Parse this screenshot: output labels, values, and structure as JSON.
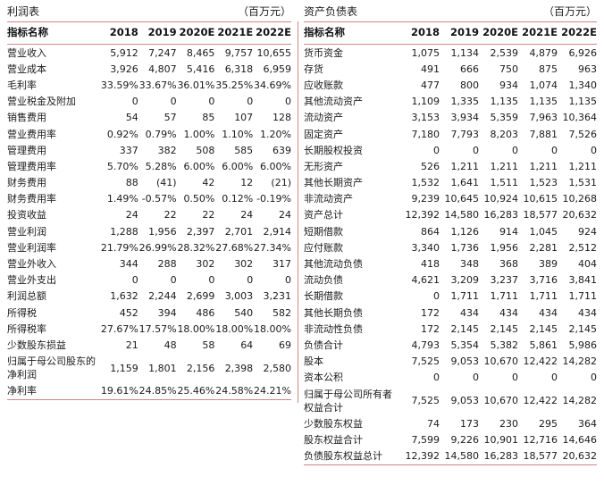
{
  "accent_line_color": "#d08683",
  "columns": [
    "指标名称",
    "2018",
    "2019",
    "2020E",
    "2021E",
    "2022E"
  ],
  "income_statement": {
    "title": "利润表",
    "unit": "（百万元）",
    "rows": [
      {
        "label": "营业收入",
        "values": [
          "5,912",
          "7,247",
          "8,465",
          "9,757",
          "10,655"
        ]
      },
      {
        "label": "营业成本",
        "values": [
          "3,926",
          "4,807",
          "5,416",
          "6,318",
          "6,959"
        ]
      },
      {
        "label": "毛利率",
        "values": [
          "33.59%",
          "33.67%",
          "36.01%",
          "35.25%",
          "34.69%"
        ]
      },
      {
        "label": "营业税金及附加",
        "values": [
          "0",
          "0",
          "0",
          "0",
          "0"
        ]
      },
      {
        "label": "销售费用",
        "values": [
          "54",
          "57",
          "85",
          "107",
          "128"
        ]
      },
      {
        "label": "营业费用率",
        "values": [
          "0.92%",
          "0.79%",
          "1.00%",
          "1.10%",
          "1.20%"
        ]
      },
      {
        "label": "管理费用",
        "values": [
          "337",
          "382",
          "508",
          "585",
          "639"
        ]
      },
      {
        "label": "管理费用率",
        "values": [
          "5.70%",
          "5.28%",
          "6.00%",
          "6.00%",
          "6.00%"
        ]
      },
      {
        "label": "财务费用",
        "values": [
          "88",
          "(41)",
          "42",
          "12",
          "(21)"
        ]
      },
      {
        "label": "财务费用率",
        "values": [
          "1.49%",
          "-0.57%",
          "0.50%",
          "0.12%",
          "-0.19%"
        ]
      },
      {
        "label": "投资收益",
        "values": [
          "24",
          "22",
          "22",
          "24",
          "24"
        ]
      },
      {
        "label": "营业利润",
        "values": [
          "1,288",
          "1,956",
          "2,397",
          "2,701",
          "2,914"
        ]
      },
      {
        "label": "营业利润率",
        "values": [
          "21.79%",
          "26.99%",
          "28.32%",
          "27.68%",
          "27.34%"
        ]
      },
      {
        "label": "营业外收入",
        "values": [
          "344",
          "288",
          "302",
          "302",
          "317"
        ]
      },
      {
        "label": "营业外支出",
        "values": [
          "0",
          "0",
          "0",
          "0",
          "0"
        ]
      },
      {
        "label": "利润总额",
        "values": [
          "1,632",
          "2,244",
          "2,699",
          "3,003",
          "3,231"
        ]
      },
      {
        "label": "所得税",
        "values": [
          "452",
          "394",
          "486",
          "540",
          "582"
        ]
      },
      {
        "label": "所得税率",
        "values": [
          "27.67%",
          "17.57%",
          "18.00%",
          "18.00%",
          "18.00%"
        ]
      },
      {
        "label": "少数股东损益",
        "values": [
          "21",
          "48",
          "58",
          "64",
          "69"
        ]
      },
      {
        "label": "归属于母公司股东的净利润",
        "values": [
          "1,159",
          "1,801",
          "2,156",
          "2,398",
          "2,580"
        ]
      },
      {
        "label": "净利率",
        "values": [
          "19.61%",
          "24.85%",
          "25.46%",
          "24.58%",
          "24.21%"
        ]
      }
    ]
  },
  "balance_sheet": {
    "title": "资产负债表",
    "unit": "（百万元）",
    "rows": [
      {
        "label": "货币资金",
        "values": [
          "1,075",
          "1,134",
          "2,539",
          "4,879",
          "6,926"
        ]
      },
      {
        "label": "存货",
        "values": [
          "491",
          "666",
          "750",
          "875",
          "963"
        ]
      },
      {
        "label": "应收账款",
        "values": [
          "477",
          "800",
          "934",
          "1,074",
          "1,340"
        ]
      },
      {
        "label": "其他流动资产",
        "values": [
          "1,109",
          "1,335",
          "1,135",
          "1,135",
          "1,135"
        ]
      },
      {
        "label": "流动资产",
        "values": [
          "3,153",
          "3,934",
          "5,359",
          "7,963",
          "10,364"
        ]
      },
      {
        "label": "固定资产",
        "values": [
          "7,180",
          "7,793",
          "8,203",
          "7,881",
          "7,526"
        ]
      },
      {
        "label": "长期股权投资",
        "values": [
          "0",
          "0",
          "0",
          "0",
          "0"
        ]
      },
      {
        "label": "无形资产",
        "values": [
          "526",
          "1,211",
          "1,211",
          "1,211",
          "1,211"
        ]
      },
      {
        "label": "其他长期资产",
        "values": [
          "1,532",
          "1,641",
          "1,511",
          "1,523",
          "1,531"
        ]
      },
      {
        "label": "非流动资产",
        "values": [
          "9,239",
          "10,645",
          "10,924",
          "10,615",
          "10,268"
        ]
      },
      {
        "label": "资产总计",
        "values": [
          "12,392",
          "14,580",
          "16,283",
          "18,577",
          "20,632"
        ]
      },
      {
        "label": "短期借款",
        "values": [
          "864",
          "1,126",
          "914",
          "1,045",
          "924"
        ]
      },
      {
        "label": "应付账款",
        "values": [
          "3,340",
          "1,736",
          "1,956",
          "2,281",
          "2,512"
        ]
      },
      {
        "label": "其他流动负债",
        "values": [
          "418",
          "348",
          "368",
          "389",
          "404"
        ]
      },
      {
        "label": "流动负债",
        "values": [
          "4,621",
          "3,209",
          "3,237",
          "3,716",
          "3,841"
        ]
      },
      {
        "label": "长期借款",
        "values": [
          "0",
          "1,711",
          "1,711",
          "1,711",
          "1,711"
        ]
      },
      {
        "label": "其他长期负债",
        "values": [
          "172",
          "434",
          "434",
          "434",
          "434"
        ]
      },
      {
        "label": "非流动性负债",
        "values": [
          "172",
          "2,145",
          "2,145",
          "2,145",
          "2,145"
        ]
      },
      {
        "label": "负债合计",
        "values": [
          "4,793",
          "5,354",
          "5,382",
          "5,861",
          "5,986"
        ]
      },
      {
        "label": "股本",
        "values": [
          "7,525",
          "9,053",
          "10,670",
          "12,422",
          "14,282"
        ]
      },
      {
        "label": "资本公积",
        "values": [
          "0",
          "0",
          "0",
          "0",
          "0"
        ]
      },
      {
        "label": "归属于母公司所有者权益合计",
        "values": [
          "7,525",
          "9,053",
          "10,670",
          "12,422",
          "14,282"
        ]
      },
      {
        "label": "少数股东权益",
        "values": [
          "74",
          "173",
          "230",
          "295",
          "364"
        ]
      },
      {
        "label": "股东权益合计",
        "values": [
          "7,599",
          "9,226",
          "10,901",
          "12,716",
          "14,646"
        ]
      },
      {
        "label": "负债股东权益总计",
        "values": [
          "12,392",
          "14,580",
          "16,283",
          "18,577",
          "20,632"
        ]
      }
    ]
  }
}
